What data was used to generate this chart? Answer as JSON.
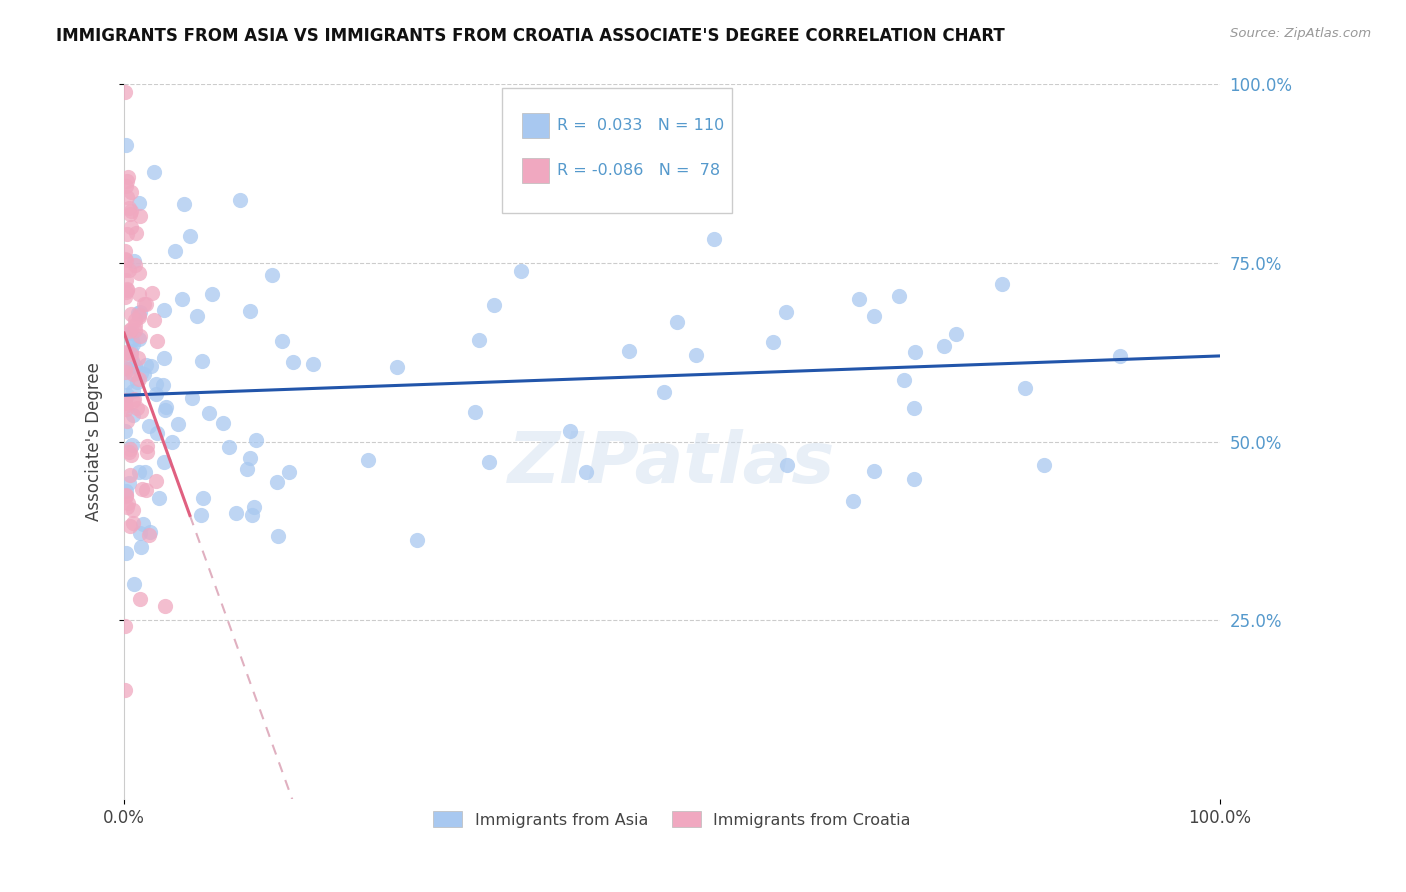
{
  "title": "IMMIGRANTS FROM ASIA VS IMMIGRANTS FROM CROATIA ASSOCIATE'S DEGREE CORRELATION CHART",
  "source": "Source: ZipAtlas.com",
  "ylabel": "Associate's Degree",
  "ytick_vals": [
    0.25,
    0.5,
    0.75,
    1.0
  ],
  "ytick_labels": [
    "25.0%",
    "50.0%",
    "75.0%",
    "100.0%"
  ],
  "legend_r_asia": " 0.033",
  "legend_n_asia": "110",
  "legend_r_croatia": "-0.086",
  "legend_n_croatia": " 78",
  "color_asia": "#a8c8f0",
  "color_croatia": "#f0a8c0",
  "line_color_asia": "#2255aa",
  "line_color_croatia_solid": "#e06080",
  "line_color_croatia_dashed": "#e0b0c0",
  "watermark": "ZIPatlas",
  "background_color": "#ffffff",
  "grid_color": "#cccccc",
  "right_axis_color": "#5599cc"
}
